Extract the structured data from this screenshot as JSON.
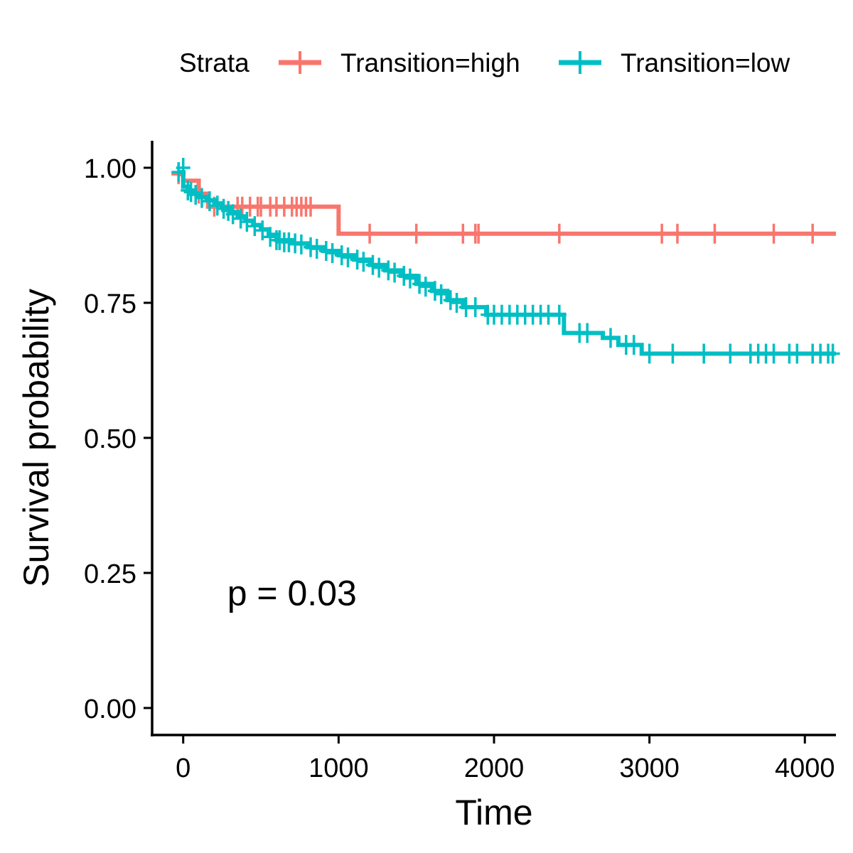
{
  "chart_data": {
    "type": "line",
    "subtype": "kaplan-meier",
    "xlabel": "Time",
    "ylabel": "Survival probability",
    "xlim": [
      -200,
      4200
    ],
    "ylim": [
      -0.05,
      1.05
    ],
    "xticks": [
      0,
      1000,
      2000,
      3000,
      4000
    ],
    "yticks": [
      0.0,
      0.25,
      0.5,
      0.75,
      1.0
    ],
    "ytick_labels": [
      "0.00",
      "0.25",
      "0.50",
      "0.75",
      "1.00"
    ],
    "grid": false,
    "legend": {
      "title": "Strata",
      "position": "top"
    },
    "annotation": {
      "text": "p = 0.03",
      "x": 700,
      "y": 0.19
    },
    "series": [
      {
        "name": "Transition=high",
        "color": "#F8766D",
        "steps": [
          [
            -30,
            0.988
          ],
          [
            0,
            0.976
          ],
          [
            100,
            0.952
          ],
          [
            160,
            0.928
          ],
          [
            1000,
            0.878
          ],
          [
            4200,
            0.878
          ]
        ],
        "censors": [
          [
            -30,
            0.988
          ],
          [
            100,
            0.952
          ],
          [
            200,
            0.928
          ],
          [
            350,
            0.928
          ],
          [
            380,
            0.928
          ],
          [
            430,
            0.928
          ],
          [
            480,
            0.928
          ],
          [
            500,
            0.928
          ],
          [
            560,
            0.928
          ],
          [
            600,
            0.928
          ],
          [
            650,
            0.928
          ],
          [
            700,
            0.928
          ],
          [
            730,
            0.928
          ],
          [
            760,
            0.928
          ],
          [
            790,
            0.928
          ],
          [
            820,
            0.928
          ],
          [
            1200,
            0.878
          ],
          [
            1500,
            0.878
          ],
          [
            1800,
            0.878
          ],
          [
            1880,
            0.878
          ],
          [
            1900,
            0.878
          ],
          [
            2420,
            0.878
          ],
          [
            3080,
            0.878
          ],
          [
            3180,
            0.878
          ],
          [
            3420,
            0.878
          ],
          [
            3800,
            0.878
          ],
          [
            4050,
            0.878
          ]
        ]
      },
      {
        "name": "Transition=low",
        "color": "#00BFC4",
        "steps": [
          [
            -30,
            0.992
          ],
          [
            0,
            0.965
          ],
          [
            30,
            0.958
          ],
          [
            60,
            0.952
          ],
          [
            100,
            0.946
          ],
          [
            150,
            0.94
          ],
          [
            200,
            0.934
          ],
          [
            250,
            0.926
          ],
          [
            300,
            0.918
          ],
          [
            350,
            0.91
          ],
          [
            400,
            0.902
          ],
          [
            450,
            0.894
          ],
          [
            500,
            0.886
          ],
          [
            550,
            0.876
          ],
          [
            600,
            0.866
          ],
          [
            700,
            0.86
          ],
          [
            800,
            0.853
          ],
          [
            900,
            0.846
          ],
          [
            1000,
            0.838
          ],
          [
            1100,
            0.83
          ],
          [
            1200,
            0.82
          ],
          [
            1300,
            0.81
          ],
          [
            1400,
            0.8
          ],
          [
            1500,
            0.785
          ],
          [
            1600,
            0.772
          ],
          [
            1700,
            0.755
          ],
          [
            1800,
            0.742
          ],
          [
            1950,
            0.728
          ],
          [
            2450,
            0.694
          ],
          [
            2700,
            0.685
          ],
          [
            2800,
            0.672
          ],
          [
            2950,
            0.656
          ],
          [
            4200,
            0.656
          ]
        ],
        "censors": [
          [
            -30,
            0.992
          ],
          [
            0,
            1.0
          ],
          [
            30,
            0.958
          ],
          [
            50,
            0.955
          ],
          [
            80,
            0.95
          ],
          [
            120,
            0.944
          ],
          [
            170,
            0.938
          ],
          [
            220,
            0.93
          ],
          [
            260,
            0.924
          ],
          [
            290,
            0.92
          ],
          [
            320,
            0.914
          ],
          [
            370,
            0.906
          ],
          [
            410,
            0.9
          ],
          [
            460,
            0.892
          ],
          [
            510,
            0.884
          ],
          [
            560,
            0.872
          ],
          [
            600,
            0.866
          ],
          [
            620,
            0.866
          ],
          [
            650,
            0.862
          ],
          [
            680,
            0.862
          ],
          [
            720,
            0.86
          ],
          [
            760,
            0.858
          ],
          [
            820,
            0.853
          ],
          [
            860,
            0.85
          ],
          [
            920,
            0.846
          ],
          [
            960,
            0.842
          ],
          [
            1020,
            0.838
          ],
          [
            1060,
            0.834
          ],
          [
            1120,
            0.83
          ],
          [
            1160,
            0.826
          ],
          [
            1220,
            0.82
          ],
          [
            1260,
            0.815
          ],
          [
            1320,
            0.81
          ],
          [
            1360,
            0.806
          ],
          [
            1420,
            0.8
          ],
          [
            1460,
            0.795
          ],
          [
            1520,
            0.785
          ],
          [
            1560,
            0.78
          ],
          [
            1620,
            0.772
          ],
          [
            1660,
            0.766
          ],
          [
            1720,
            0.755
          ],
          [
            1760,
            0.75
          ],
          [
            1820,
            0.742
          ],
          [
            1880,
            0.742
          ],
          [
            1960,
            0.728
          ],
          [
            2000,
            0.728
          ],
          [
            2050,
            0.728
          ],
          [
            2100,
            0.728
          ],
          [
            2150,
            0.728
          ],
          [
            2200,
            0.728
          ],
          [
            2250,
            0.728
          ],
          [
            2300,
            0.728
          ],
          [
            2350,
            0.728
          ],
          [
            2420,
            0.728
          ],
          [
            2550,
            0.694
          ],
          [
            2600,
            0.694
          ],
          [
            2750,
            0.685
          ],
          [
            2850,
            0.672
          ],
          [
            2900,
            0.672
          ],
          [
            3000,
            0.656
          ],
          [
            3150,
            0.656
          ],
          [
            3350,
            0.656
          ],
          [
            3520,
            0.656
          ],
          [
            3650,
            0.656
          ],
          [
            3700,
            0.656
          ],
          [
            3750,
            0.656
          ],
          [
            3800,
            0.656
          ],
          [
            3900,
            0.656
          ],
          [
            3950,
            0.656
          ],
          [
            4050,
            0.656
          ],
          [
            4100,
            0.656
          ],
          [
            4150,
            0.656
          ],
          [
            4180,
            0.656
          ]
        ]
      }
    ]
  }
}
